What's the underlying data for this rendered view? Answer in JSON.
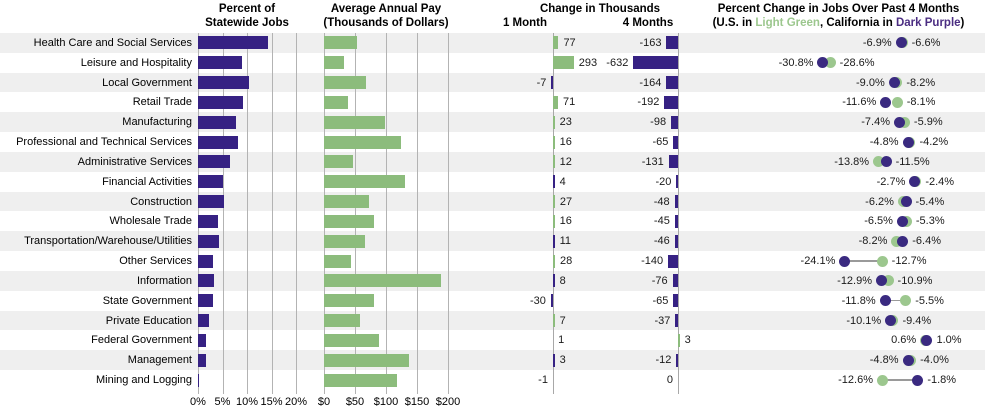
{
  "headers": {
    "panel1_line1": "Percent of",
    "panel1_line2": "Statewide Jobs",
    "panel2_line1": "Average Annual Pay",
    "panel2_line2": "(Thousands of Dollars)",
    "panel3_title": "Change in Thousands",
    "panel3_col1": "1 Month",
    "panel3_col2": "4 Months",
    "panel4_title": "Percent Change in Jobs Over Past 4 Months",
    "panel4_sub_prefix": "(U.S. in ",
    "panel4_sub_green": "Light Green",
    "panel4_sub_mid": ", California in ",
    "panel4_sub_purple": "Dark Purple",
    "panel4_sub_suffix": ")"
  },
  "colors": {
    "purple": "#362183",
    "green": "#8cbc7c",
    "dot_green": "#9cc78e",
    "dot_purple": "#3a2a80",
    "legend_green_text": "#9cc78e",
    "legend_purple_text": "#4b2d82",
    "stripe": "#efefef",
    "grid": "#b3b3b3",
    "axis": "#a8a8a8",
    "connector": "#9a9a9a",
    "value_text": "#1a1a1a"
  },
  "chart_data": {
    "type": "bar",
    "subtype": "multi-panel horizontal bar + dot plot",
    "categories": [
      "Health Care and Social Services",
      "Leisure and Hospitality",
      "Local Government",
      "Retail Trade",
      "Manufacturing",
      "Professional and Technical Services",
      "Administrative Services",
      "Financial Activities",
      "Construction",
      "Wholesale Trade",
      "Transportation/Warehouse/Utilities",
      "Other Services",
      "Information",
      "State Government",
      "Private Education",
      "Federal Government",
      "Management",
      "Mining and Logging"
    ],
    "panels": [
      {
        "id": "pct_jobs",
        "title": "Percent of Statewide Jobs",
        "type": "bar",
        "unit": "percent",
        "xlim": [
          0,
          20
        ],
        "tick_labels": [
          "0%",
          "5%",
          "10%",
          "15%",
          "20%"
        ],
        "values": [
          14.3,
          8.9,
          10.5,
          9.1,
          7.7,
          8.1,
          6.5,
          5.1,
          5.3,
          4.0,
          4.2,
          3.0,
          3.3,
          3.1,
          2.2,
          1.7,
          1.7,
          0.3
        ]
      },
      {
        "id": "avg_pay",
        "title": "Average Annual Pay (Thousands of Dollars)",
        "type": "bar",
        "unit": "thousands_of_dollars",
        "xlim": [
          0,
          200
        ],
        "tick_labels": [
          "$0",
          "$50",
          "$100",
          "$150",
          "$200"
        ],
        "values": [
          54,
          33,
          67,
          38,
          98,
          124,
          47,
          130,
          72,
          80,
          66,
          43,
          189,
          81,
          58,
          88,
          137,
          118
        ]
      },
      {
        "id": "chg_1mo",
        "title": "Change in Thousands - 1 Month",
        "type": "bar",
        "unit": "thousands_of_jobs",
        "values": [
          77,
          293,
          -7,
          71,
          23,
          16,
          12,
          4,
          27,
          16,
          11,
          28,
          8,
          -30,
          7,
          1,
          3,
          -1
        ],
        "bar_colors": [
          "green",
          "green",
          "purple",
          "green",
          "green",
          "green",
          "green",
          "purple",
          "green",
          "green",
          "purple",
          "green",
          "purple",
          "purple",
          "green",
          "green",
          "purple",
          "purple"
        ]
      },
      {
        "id": "chg_4mo",
        "title": "Change in Thousands - 4 Months",
        "type": "bar",
        "unit": "thousands_of_jobs",
        "values": [
          -163,
          -632,
          -164,
          -192,
          -98,
          -65,
          -131,
          -20,
          -48,
          -45,
          -46,
          -140,
          -76,
          -65,
          -37,
          3,
          -12,
          0
        ]
      },
      {
        "id": "pct_chg_4mo",
        "title": "Percent Change in Jobs Over Past 4 Months",
        "type": "scatter",
        "unit": "percent",
        "legend": [
          {
            "name": "U.S.",
            "color": "light green"
          },
          {
            "name": "California",
            "color": "dark purple"
          }
        ],
        "series": [
          {
            "name": "U.S.",
            "values": [
              -6.6,
              -28.6,
              -8.2,
              -8.1,
              -5.9,
              -4.2,
              -13.8,
              -2.4,
              -6.2,
              -5.3,
              -8.2,
              -12.7,
              -10.9,
              -5.5,
              -9.4,
              0.6,
              -4.0,
              -12.6
            ]
          },
          {
            "name": "California",
            "values": [
              -6.9,
              -30.8,
              -9.0,
              -11.6,
              -7.4,
              -4.8,
              -11.5,
              -2.7,
              -5.4,
              -6.5,
              -6.4,
              -24.1,
              -12.9,
              -11.8,
              -10.1,
              1.0,
              -4.8,
              -1.8
            ]
          }
        ]
      }
    ]
  }
}
